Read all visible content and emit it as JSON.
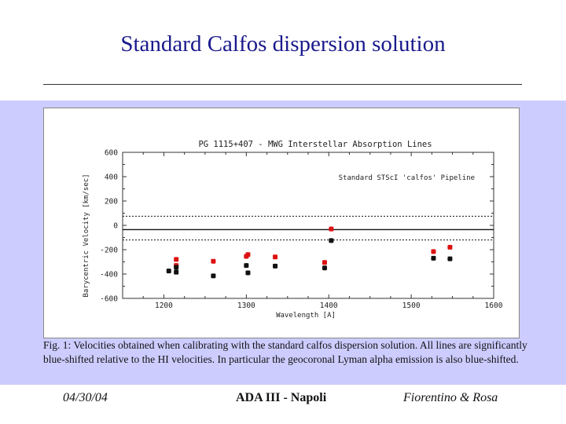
{
  "slide": {
    "title": "Standard Calfos dispersion solution",
    "caption": "Fig. 1: Velocities obtained when calibrating with the standard calfos dispersion solution. All lines are significantly blue-shifted relative to the HI velocities. In particular the geocoronal Lyman alpha emission is also blue-shifted.",
    "footer": {
      "date": "04/30/04",
      "center": "ADA III  - Napoli",
      "authors": "Fiorentino & Rosa"
    }
  },
  "colors": {
    "title": "#1a1a8c",
    "band": "#ccccff",
    "red_points": "#dd1111",
    "black_points": "#111111"
  },
  "chart_data": {
    "type": "scatter",
    "title": "PG 1115+407 - MWG Interstellar Absorption Lines",
    "annotation": "Standard STScI 'calfos' Pipeline",
    "xlabel": "Wavelength [A]",
    "ylabel": "Barycentric Velocity [km/sec]",
    "xlim": [
      1150,
      1600
    ],
    "ylim": [
      -600,
      600
    ],
    "xticks": [
      1200,
      1300,
      1400,
      1500,
      1600
    ],
    "yticks": [
      -600,
      -400,
      -200,
      0,
      200,
      400,
      600
    ],
    "xtick_labels": [
      "1200",
      "1300",
      "1400",
      "1500",
      "1600"
    ],
    "ytick_labels": [
      "-600",
      "-400",
      "-200",
      "0",
      "200",
      "400",
      "600"
    ],
    "reference_lines": [
      {
        "y": -35,
        "style": "solid"
      },
      {
        "y": 75,
        "style": "dotted"
      },
      {
        "y": -120,
        "style": "dotted"
      }
    ],
    "series": [
      {
        "color": "#dd1111",
        "points": [
          [
            1215,
            -280
          ],
          [
            1215,
            -330
          ],
          [
            1260,
            -295
          ],
          [
            1300,
            -255
          ],
          [
            1302,
            -240
          ],
          [
            1335,
            -260
          ],
          [
            1395,
            -305
          ],
          [
            1403,
            -30
          ],
          [
            1527,
            -215
          ],
          [
            1547,
            -180
          ]
        ]
      },
      {
        "color": "#111111",
        "points": [
          [
            1206,
            -375
          ],
          [
            1215,
            -385
          ],
          [
            1215,
            -345
          ],
          [
            1260,
            -415
          ],
          [
            1300,
            -330
          ],
          [
            1302,
            -390
          ],
          [
            1335,
            -335
          ],
          [
            1395,
            -350
          ],
          [
            1403,
            -125
          ],
          [
            1527,
            -270
          ],
          [
            1547,
            -275
          ]
        ]
      }
    ],
    "grid": false
  }
}
